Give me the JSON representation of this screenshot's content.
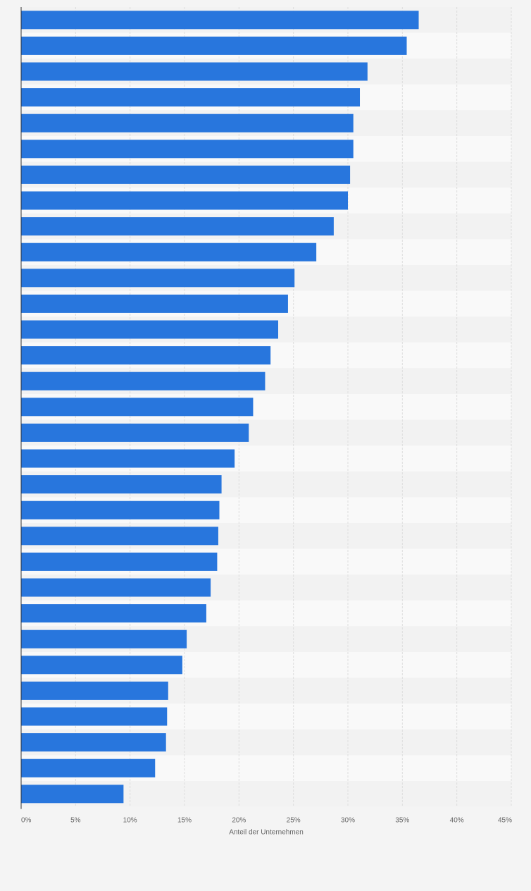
{
  "chart_data": {
    "type": "bar",
    "orientation": "horizontal",
    "title": "",
    "xlabel": "Anteil der Unternehmen",
    "ylabel": "",
    "xlim": [
      0,
      45
    ],
    "x_ticks": [
      {
        "value": 0,
        "label": "0%"
      },
      {
        "value": 5,
        "label": "5%"
      },
      {
        "value": 10,
        "label": "10%"
      },
      {
        "value": 15,
        "label": "15%"
      },
      {
        "value": 20,
        "label": "20%"
      },
      {
        "value": 25,
        "label": "25%"
      },
      {
        "value": 30,
        "label": "30%"
      },
      {
        "value": 35,
        "label": "35%"
      },
      {
        "value": 40,
        "label": "40%"
      },
      {
        "value": 45,
        "label": "45%"
      }
    ],
    "grid": "vertical dashed",
    "legend": "none",
    "values": [
      36.5,
      35.4,
      31.8,
      31.1,
      30.5,
      30.5,
      30.2,
      30.0,
      28.7,
      27.1,
      25.1,
      24.5,
      23.6,
      22.9,
      22.4,
      21.3,
      20.9,
      19.6,
      18.4,
      18.2,
      18.1,
      18.0,
      17.4,
      17.0,
      15.2,
      14.8,
      13.5,
      13.4,
      13.3,
      12.3,
      9.4
    ],
    "bar_color": "#2876dd"
  },
  "colors": {
    "page_background": "#f4f4f4",
    "band_light": "#f9f9f9",
    "band_dark": "#f2f2f2",
    "grid": "#dddddd",
    "axis": "#333333",
    "tick_text": "#666666"
  }
}
